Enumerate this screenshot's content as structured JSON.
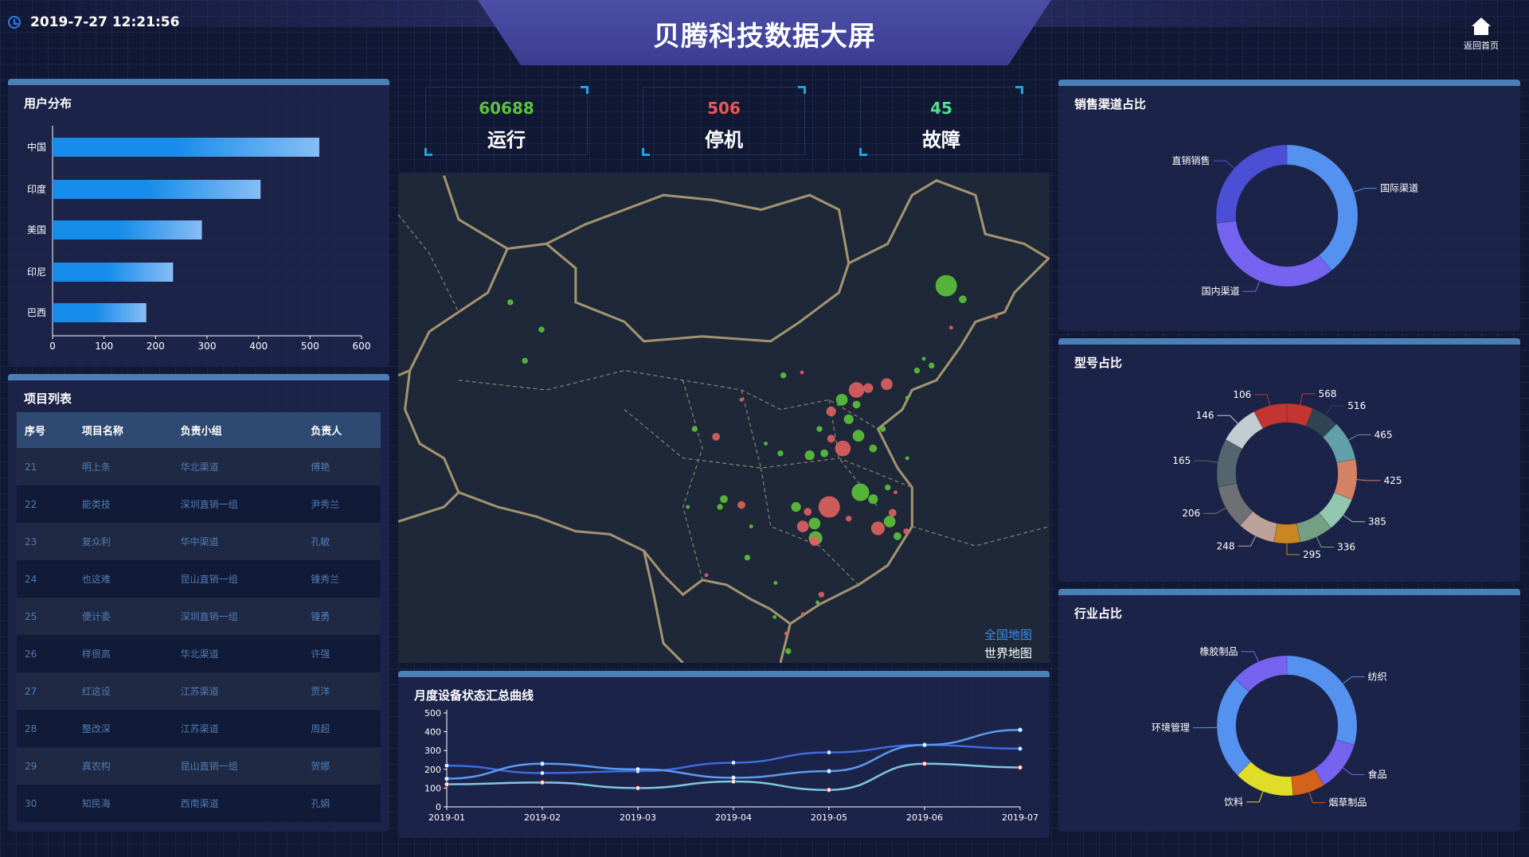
{
  "header": {
    "datetime": "2019-7-27 12:21:56",
    "title": "贝腾科技数据大屏",
    "home_label": "返回首页"
  },
  "stats": [
    {
      "value": "60688",
      "label": "运行",
      "color": "#5cc23a"
    },
    {
      "value": "506",
      "label": "停机",
      "color": "#ee5555"
    },
    {
      "value": "45",
      "label": "故障",
      "color": "#4ee08e"
    }
  ],
  "user_distribution": {
    "title": "用户分布",
    "chart_data": {
      "type": "bar",
      "orientation": "horizontal",
      "categories": [
        "中国",
        "印度",
        "美国",
        "印尼",
        "巴西"
      ],
      "values": [
        518,
        404,
        290,
        234,
        182
      ],
      "xlim": [
        0,
        600
      ],
      "xticks": [
        "0",
        "100",
        "200",
        "300",
        "400",
        "500",
        "600"
      ]
    }
  },
  "project_list": {
    "title": "项目列表",
    "columns": [
      "序号",
      "项目名称",
      "负责小组",
      "负责人"
    ],
    "rows": [
      [
        "21",
        "明上条",
        "华北渠道",
        "傅艳"
      ],
      [
        "22",
        "能类技",
        "深圳直销一组",
        "尹秀兰"
      ],
      [
        "23",
        "复众利",
        "华中渠道",
        "孔敏"
      ],
      [
        "24",
        "也这难",
        "昆山直销一组",
        "锺秀兰"
      ],
      [
        "25",
        "便计委",
        "深圳直销一组",
        "锺勇"
      ],
      [
        "26",
        "样很高",
        "华北渠道",
        "许强"
      ],
      [
        "27",
        "红这设",
        "江苏渠道",
        "贾洋"
      ],
      [
        "28",
        "整改深",
        "江苏渠道",
        "周超"
      ],
      [
        "29",
        "真农构",
        "昆山直销一组",
        "贺娜"
      ],
      [
        "30",
        "知民海",
        "西南渠道",
        "孔娟"
      ]
    ]
  },
  "map": {
    "links": [
      "全国地图",
      "世界地图"
    ],
    "active_link_color": "#3a8ef0",
    "status_colors": {
      "running": "#5cc23a",
      "stopped": "#e06060"
    }
  },
  "monthly": {
    "title": "月度设备状态汇总曲线",
    "chart_data": {
      "type": "line",
      "smooth": true,
      "x": [
        "2019-01",
        "2019-02",
        "2019-03",
        "2019-04",
        "2019-05",
        "2019-06",
        "2019-07"
      ],
      "ylim": [
        0,
        500
      ],
      "yticks": [
        "0",
        "100",
        "200",
        "300",
        "400",
        "500"
      ],
      "series": [
        {
          "color": "#3d6be0",
          "values": [
            220,
            180,
            190,
            235,
            290,
            330,
            310
          ]
        },
        {
          "color": "#5b9cf0",
          "values": [
            150,
            230,
            200,
            155,
            190,
            330,
            410
          ]
        },
        {
          "color": "#7ec8e3",
          "values": [
            120,
            130,
            100,
            135,
            90,
            230,
            210
          ]
        }
      ]
    }
  },
  "sales_channel": {
    "title": "销售渠道占比",
    "chart_data": {
      "type": "pie",
      "donut": true,
      "labels": [
        "国际渠道",
        "国内渠道",
        "直销销售"
      ],
      "values": [
        39,
        34,
        27
      ],
      "colors": [
        "#5592f0",
        "#7664f0",
        "#4a4fd6"
      ]
    }
  },
  "model_share": {
    "title": "型号占比",
    "chart_data": {
      "type": "pie",
      "donut": true,
      "labels": [
        "568",
        "516",
        "465",
        "425",
        "385",
        "336",
        "295",
        "248",
        "206",
        "165",
        "146",
        "106"
      ],
      "values": [
        568,
        516,
        465,
        425,
        385,
        336,
        295,
        248,
        206,
        165,
        146,
        106
      ],
      "colors": [
        "#c23531",
        "#2f4554",
        "#61a0a8",
        "#d48265",
        "#91c7ae",
        "#749f83",
        "#ca8622",
        "#bda29a",
        "#6e7074",
        "#546570",
        "#c4ccd3",
        "#c23531"
      ]
    }
  },
  "industry_share": {
    "title": "行业占比",
    "chart_data": {
      "type": "pie",
      "donut": true,
      "labels": [
        "纺织",
        "食品",
        "烟草制品",
        "饮料",
        "环境管理",
        "橡胶制品"
      ],
      "values": [
        29,
        12,
        8,
        14,
        24,
        13
      ],
      "colors": [
        "#5592f0",
        "#7664f0",
        "#d4621a",
        "#e0dc2a",
        "#5592f0",
        "#7664f0"
      ]
    }
  }
}
